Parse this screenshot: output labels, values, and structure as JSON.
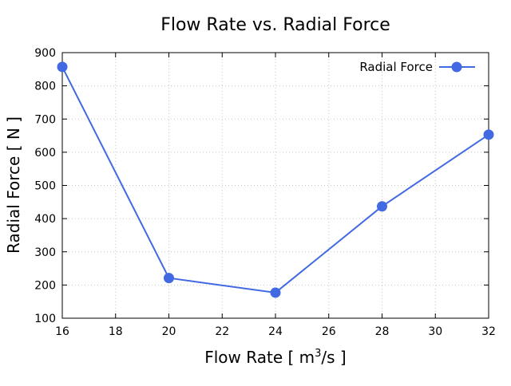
{
  "chart_data": {
    "type": "line",
    "title": "Flow Rate vs. Radial Force",
    "xlabel": "Flow Rate [ m",
    "xlabel_sup": "3",
    "xlabel_suffix": "/s ]",
    "ylabel": "Radial Force [ N ]",
    "xlim": [
      16,
      32
    ],
    "ylim": [
      100,
      900
    ],
    "xticks": [
      16,
      18,
      20,
      22,
      24,
      26,
      28,
      30,
      32
    ],
    "yticks": [
      100,
      200,
      300,
      400,
      500,
      600,
      700,
      800,
      900
    ],
    "grid": true,
    "legend_position": "top-right",
    "series": [
      {
        "name": "Radial Force",
        "color": "#4169e1",
        "x": [
          16,
          20,
          24,
          28,
          32
        ],
        "y": [
          857,
          221,
          177,
          437,
          653
        ]
      }
    ]
  }
}
